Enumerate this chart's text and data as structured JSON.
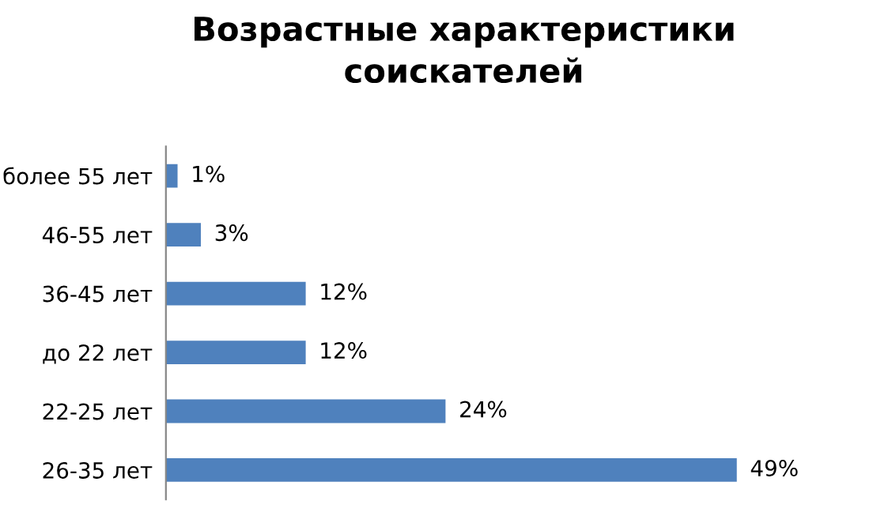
{
  "chart_data": {
    "type": "bar",
    "orientation": "horizontal",
    "title": "Возрастные характеристики\nсоискателей",
    "categories": [
      "более 55 лет",
      "46-55 лет",
      "36-45 лет",
      "до 22 лет",
      "22-25 лет",
      "26-35 лет"
    ],
    "values": [
      1,
      3,
      12,
      12,
      24,
      49
    ],
    "value_labels": [
      "1%",
      "3%",
      "12%",
      "12%",
      "24%",
      "49%"
    ],
    "color": "#4f81bd",
    "grid": false,
    "legend": false
  }
}
